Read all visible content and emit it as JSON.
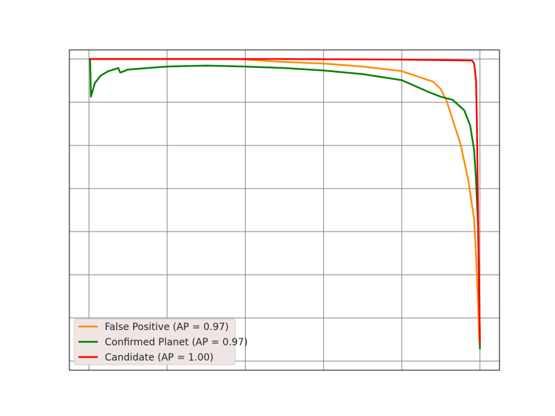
{
  "chart_data": {
    "type": "line",
    "title": "",
    "xlabel": "",
    "ylabel": "",
    "xlim": [
      -0.05,
      1.05
    ],
    "ylim": [
      -0.03,
      1.03
    ],
    "x_ticks": [
      0.0,
      0.2,
      0.4,
      0.6,
      0.8,
      1.0
    ],
    "y_ticks": [
      0.0,
      0.143,
      0.286,
      0.429,
      0.571,
      0.714,
      0.857,
      1.0
    ],
    "grid": true,
    "legend_position": "lower-left",
    "series": [
      {
        "name": "False Positive (AP = 0.97)",
        "color": "#ff8c00",
        "points": [
          [
            0.0,
            1.0
          ],
          [
            0.2,
            1.0
          ],
          [
            0.38,
            1.0
          ],
          [
            0.5,
            0.99
          ],
          [
            0.6,
            0.985
          ],
          [
            0.7,
            0.975
          ],
          [
            0.8,
            0.96
          ],
          [
            0.88,
            0.925
          ],
          [
            0.9,
            0.9
          ],
          [
            0.915,
            0.86
          ],
          [
            0.93,
            0.8
          ],
          [
            0.95,
            0.72
          ],
          [
            0.97,
            0.6
          ],
          [
            0.985,
            0.47
          ],
          [
            0.99,
            0.35
          ],
          [
            0.995,
            0.2
          ],
          [
            0.998,
            0.08
          ],
          [
            1.0,
            0.04
          ]
        ]
      },
      {
        "name": "Confirmed Planet (AP = 0.97)",
        "color": "#008000",
        "points": [
          [
            0.0,
            1.0
          ],
          [
            0.003,
            1.0
          ],
          [
            0.005,
            0.875
          ],
          [
            0.015,
            0.92
          ],
          [
            0.03,
            0.945
          ],
          [
            0.05,
            0.96
          ],
          [
            0.075,
            0.97
          ],
          [
            0.08,
            0.955
          ],
          [
            0.1,
            0.965
          ],
          [
            0.15,
            0.97
          ],
          [
            0.2,
            0.975
          ],
          [
            0.3,
            0.978
          ],
          [
            0.4,
            0.975
          ],
          [
            0.5,
            0.97
          ],
          [
            0.6,
            0.962
          ],
          [
            0.7,
            0.95
          ],
          [
            0.8,
            0.93
          ],
          [
            0.87,
            0.89
          ],
          [
            0.9,
            0.875
          ],
          [
            0.93,
            0.865
          ],
          [
            0.96,
            0.83
          ],
          [
            0.975,
            0.78
          ],
          [
            0.985,
            0.7
          ],
          [
            0.99,
            0.6
          ],
          [
            0.995,
            0.45
          ],
          [
            0.998,
            0.25
          ],
          [
            1.0,
            0.04
          ]
        ]
      },
      {
        "name": "Candidate (AP = 1.00)",
        "color": "#ff0000",
        "points": [
          [
            0.0,
            1.0
          ],
          [
            0.5,
            1.0
          ],
          [
            0.8,
            0.998
          ],
          [
            0.98,
            0.995
          ],
          [
            0.985,
            0.985
          ],
          [
            0.99,
            0.93
          ],
          [
            0.992,
            0.8
          ],
          [
            0.995,
            0.5
          ],
          [
            0.998,
            0.2
          ],
          [
            1.0,
            0.06
          ]
        ]
      }
    ]
  }
}
